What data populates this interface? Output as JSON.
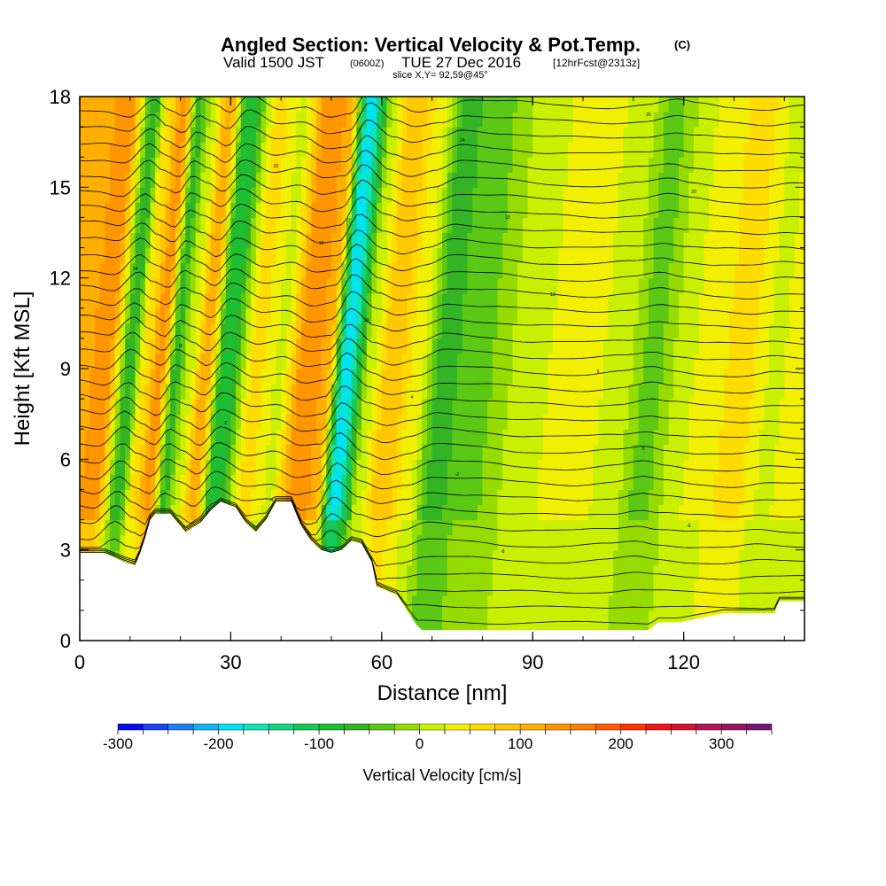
{
  "header": {
    "title_main": "Angled Section: Vertical Velocity & Pot.Temp.",
    "title_units": "(C)",
    "valid_prefix": "Valid 1500 JST",
    "valid_utc": "(0600Z)",
    "valid_date": "TUE 27 Dec 2016",
    "forecast": "[12hrFcst@2313z]",
    "slice": "slice X,Y= 92,59@45°"
  },
  "colorbar": {
    "label": "Vertical Velocity [cm/s]",
    "min": -300,
    "max": 350,
    "step": 25,
    "ticks": [
      "-300",
      "-200",
      "-100",
      "0",
      "100",
      "200",
      "300"
    ],
    "tick_values": [
      -300,
      -200,
      -100,
      0,
      100,
      200,
      300
    ],
    "colors": [
      "#0a0af0",
      "#1a46f5",
      "#1a82f5",
      "#10b4f5",
      "#00e4f0",
      "#10e4b4",
      "#14d484",
      "#14c85a",
      "#1ebe32",
      "#32b424",
      "#5ac814",
      "#96dc00",
      "#c8f000",
      "#f0f000",
      "#ffdc00",
      "#ffc800",
      "#ffaf00",
      "#ff9600",
      "#ff7d00",
      "#ff5a00",
      "#ff3200",
      "#f01414",
      "#d21432",
      "#b41450",
      "#961464",
      "#781478"
    ]
  },
  "chart_data": {
    "type": "heatmap",
    "title": "Angled Section: Vertical Velocity & Pot.Temp.",
    "xlabel": "Distance [nm]",
    "ylabel": "Height [Kft MSL]",
    "xlim": [
      0,
      144
    ],
    "ylim": [
      0,
      18
    ],
    "xticks": [
      0,
      30,
      60,
      90,
      120
    ],
    "xtick_labels": [
      "0",
      "30",
      "60",
      "90",
      "120"
    ],
    "yticks": [
      0,
      3,
      6,
      9,
      12,
      15,
      18
    ],
    "ytick_labels": [
      "0",
      "3",
      "6",
      "9",
      "12",
      "15",
      "18"
    ],
    "colorbar_label": "Vertical Velocity [cm/s]",
    "vertical_velocity_bands": [
      {
        "x": 0,
        "w": 100
      },
      {
        "x": 5,
        "w": 150
      },
      {
        "x": 10,
        "w": -70
      },
      {
        "x": 13,
        "w": 60
      },
      {
        "x": 16,
        "w": 140
      },
      {
        "x": 19,
        "w": -60
      },
      {
        "x": 22,
        "w": 20
      },
      {
        "x": 25,
        "w": 120
      },
      {
        "x": 29,
        "w": -100
      },
      {
        "x": 35,
        "w": 60
      },
      {
        "x": 40,
        "w": 20
      },
      {
        "x": 45,
        "w": 150
      },
      {
        "x": 49,
        "w": 120
      },
      {
        "x": 53,
        "w": -200
      },
      {
        "x": 58,
        "w": 20
      },
      {
        "x": 62,
        "w": 100
      },
      {
        "x": 67,
        "w": 40
      },
      {
        "x": 72,
        "w": -60
      },
      {
        "x": 80,
        "w": -30
      },
      {
        "x": 90,
        "w": 20
      },
      {
        "x": 100,
        "w": 40
      },
      {
        "x": 108,
        "w": 10
      },
      {
        "x": 114,
        "w": -40
      },
      {
        "x": 118,
        "w": 0
      },
      {
        "x": 125,
        "w": 40
      },
      {
        "x": 132,
        "w": 60
      },
      {
        "x": 138,
        "w": 20
      },
      {
        "x": 144,
        "w": 40
      }
    ],
    "terrain_kft": [
      [
        0,
        2.9
      ],
      [
        5,
        2.9
      ],
      [
        9,
        2.6
      ],
      [
        11,
        2.5
      ],
      [
        12,
        2.9
      ],
      [
        13,
        3.4
      ],
      [
        14,
        4.0
      ],
      [
        15,
        4.2
      ],
      [
        18,
        4.2
      ],
      [
        20,
        3.8
      ],
      [
        21,
        3.6
      ],
      [
        24,
        3.9
      ],
      [
        26,
        4.3
      ],
      [
        28,
        4.6
      ],
      [
        31,
        4.4
      ],
      [
        33,
        3.9
      ],
      [
        35,
        3.6
      ],
      [
        37,
        4.0
      ],
      [
        39,
        4.6
      ],
      [
        42,
        4.6
      ],
      [
        44,
        3.8
      ],
      [
        46,
        3.3
      ],
      [
        48,
        3.0
      ],
      [
        50,
        2.9
      ],
      [
        52,
        3.0
      ],
      [
        54,
        3.3
      ],
      [
        56,
        3.2
      ],
      [
        58,
        2.6
      ],
      [
        59,
        1.8
      ],
      [
        63,
        1.5
      ],
      [
        65,
        1.0
      ],
      [
        67,
        0.5
      ],
      [
        68,
        0.35
      ],
      [
        86,
        0.35
      ],
      [
        99,
        0.35
      ],
      [
        113,
        0.35
      ],
      [
        115,
        0.6
      ],
      [
        119,
        0.6
      ],
      [
        128,
        0.9
      ],
      [
        138,
        0.9
      ],
      [
        139,
        1.3
      ],
      [
        144,
        1.3
      ]
    ],
    "pot_temp_contour_labels": [
      "-12",
      "-10",
      "-8",
      "-6",
      "-4",
      "-2",
      "0",
      "2",
      "4",
      "6",
      "8",
      "10",
      "12",
      "14",
      "16",
      "18",
      "20",
      "22",
      "24",
      "26"
    ]
  }
}
